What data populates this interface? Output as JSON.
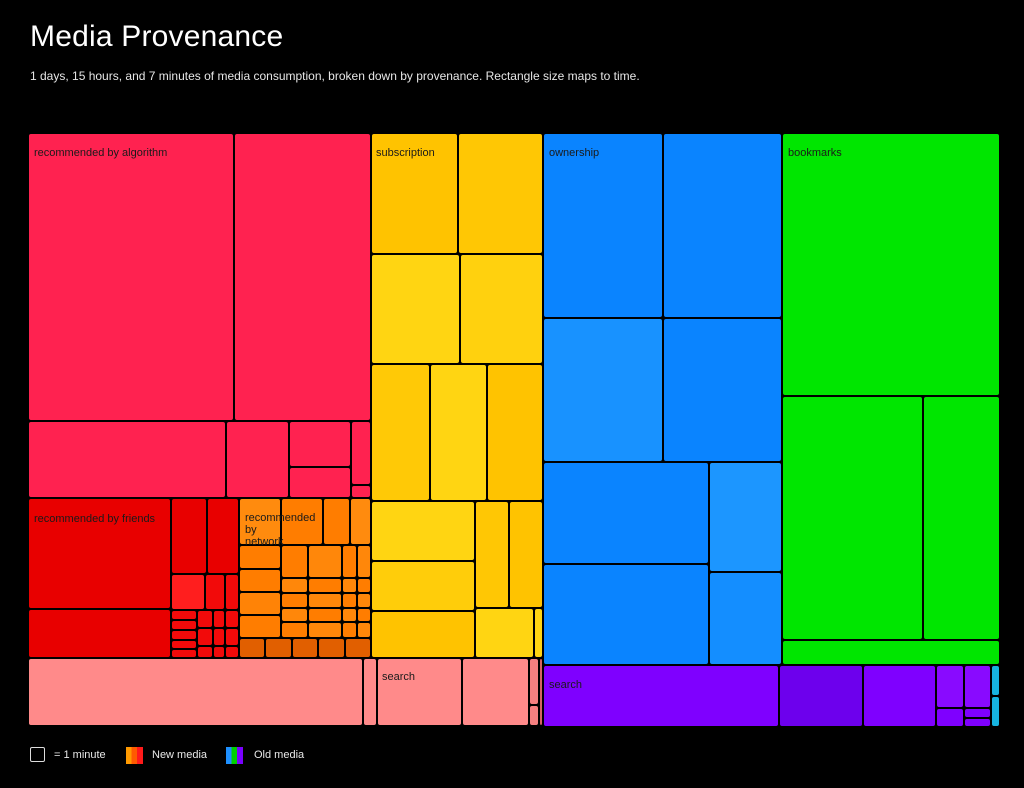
{
  "header": {
    "title": "Media Provenance",
    "subtitle": "1 days, 15 hours, and 7 minutes of media consumption, broken down by provenance. Rectangle size maps to time."
  },
  "legend": {
    "unit_label": "= 1 minute",
    "new_label": "New media",
    "old_label": "Old media",
    "new_colors": [
      "#ff8c00",
      "#ff2a2a"
    ],
    "old_colors": [
      "#1e90ff",
      "#00e000",
      "#8a00ff"
    ]
  },
  "chart_data": {
    "type": "treemap",
    "title": "Media Provenance",
    "groups": [
      {
        "label": "recommended by algorithm",
        "media": "new",
        "color": "#ff2250"
      },
      {
        "label": "subscription",
        "media": "new",
        "color": "#ffc300"
      },
      {
        "label": "ownership",
        "media": "old",
        "color": "#0a84ff"
      },
      {
        "label": "bookmarks",
        "media": "old",
        "color": "#00e600"
      },
      {
        "label": "recommended by friends",
        "media": "new",
        "color": "#e80000"
      },
      {
        "label": "recommended by network",
        "media": "new",
        "color": "#ff7d00"
      },
      {
        "label": "search",
        "media": "new",
        "color": "#ff8a8a"
      },
      {
        "label": "search",
        "media": "old",
        "color": "#7f00ff"
      }
    ]
  }
}
